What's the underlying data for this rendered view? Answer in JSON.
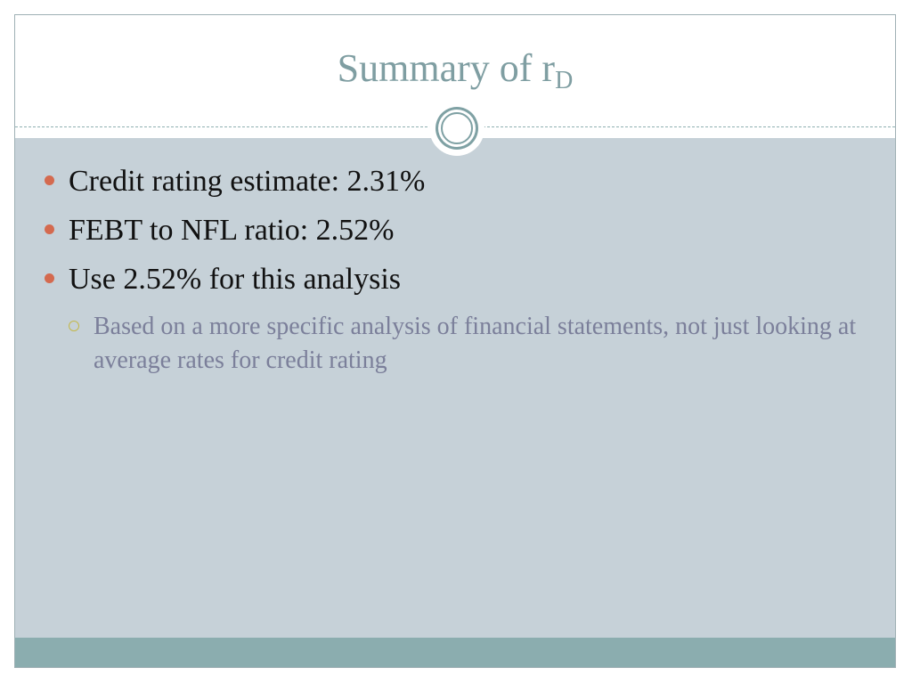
{
  "slide": {
    "title_main": "Summary of r",
    "title_subscript": "D",
    "bullets": [
      "Credit rating estimate: 2.31%",
      "FEBT to NFL ratio: 2.52%",
      "Use 2.52% for this analysis"
    ],
    "sub_bullets": [
      " Based on a more specific analysis of financial statements, not just looking at average rates for credit rating"
    ]
  },
  "colors": {
    "title": "#7f9ea2",
    "content_background": "#c6d1d8",
    "footer_band": "#8badaf",
    "bullet_marker": "#d46a4f",
    "sub_bullet_marker": "#c4b84a",
    "sub_bullet_text": "#7b7f9a"
  }
}
